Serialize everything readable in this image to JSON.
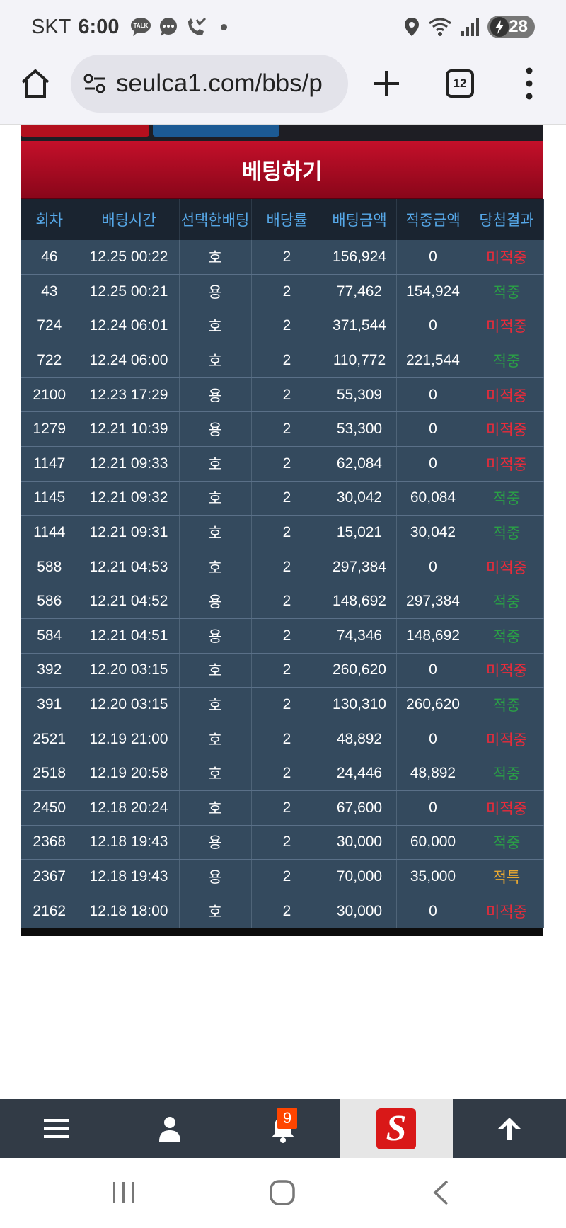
{
  "status_bar": {
    "carrier": "SKT",
    "time": "6:00",
    "battery": "28",
    "icons": [
      "talk-icon",
      "message-icon",
      "missed-call-icon",
      "location-icon",
      "wifi-icon",
      "signal-icon",
      "battery-icon"
    ]
  },
  "browser": {
    "url": "seulca1.com/bbs/p",
    "tab_count": "12"
  },
  "page": {
    "title": "베팅하기",
    "columns": [
      "회차",
      "배팅시간",
      "선택한배팅",
      "배당률",
      "배팅금액",
      "적중금액",
      "당첨결과"
    ],
    "rows": [
      {
        "round": "46",
        "time": "12.25 00:22",
        "pick": "호",
        "odds": "2",
        "bet": "156,924",
        "win": "0",
        "result": "미적중",
        "status": "miss"
      },
      {
        "round": "43",
        "time": "12.25 00:21",
        "pick": "용",
        "odds": "2",
        "bet": "77,462",
        "win": "154,924",
        "result": "적중",
        "status": "hit"
      },
      {
        "round": "724",
        "time": "12.24 06:01",
        "pick": "호",
        "odds": "2",
        "bet": "371,544",
        "win": "0",
        "result": "미적중",
        "status": "miss"
      },
      {
        "round": "722",
        "time": "12.24 06:00",
        "pick": "호",
        "odds": "2",
        "bet": "110,772",
        "win": "221,544",
        "result": "적중",
        "status": "hit"
      },
      {
        "round": "2100",
        "time": "12.23 17:29",
        "pick": "용",
        "odds": "2",
        "bet": "55,309",
        "win": "0",
        "result": "미적중",
        "status": "miss"
      },
      {
        "round": "1279",
        "time": "12.21 10:39",
        "pick": "용",
        "odds": "2",
        "bet": "53,300",
        "win": "0",
        "result": "미적중",
        "status": "miss"
      },
      {
        "round": "1147",
        "time": "12.21 09:33",
        "pick": "호",
        "odds": "2",
        "bet": "62,084",
        "win": "0",
        "result": "미적중",
        "status": "miss"
      },
      {
        "round": "1145",
        "time": "12.21 09:32",
        "pick": "호",
        "odds": "2",
        "bet": "30,042",
        "win": "60,084",
        "result": "적중",
        "status": "hit"
      },
      {
        "round": "1144",
        "time": "12.21 09:31",
        "pick": "호",
        "odds": "2",
        "bet": "15,021",
        "win": "30,042",
        "result": "적중",
        "status": "hit"
      },
      {
        "round": "588",
        "time": "12.21 04:53",
        "pick": "호",
        "odds": "2",
        "bet": "297,384",
        "win": "0",
        "result": "미적중",
        "status": "miss"
      },
      {
        "round": "586",
        "time": "12.21 04:52",
        "pick": "용",
        "odds": "2",
        "bet": "148,692",
        "win": "297,384",
        "result": "적중",
        "status": "hit"
      },
      {
        "round": "584",
        "time": "12.21 04:51",
        "pick": "용",
        "odds": "2",
        "bet": "74,346",
        "win": "148,692",
        "result": "적중",
        "status": "hit"
      },
      {
        "round": "392",
        "time": "12.20 03:15",
        "pick": "호",
        "odds": "2",
        "bet": "260,620",
        "win": "0",
        "result": "미적중",
        "status": "miss"
      },
      {
        "round": "391",
        "time": "12.20 03:15",
        "pick": "호",
        "odds": "2",
        "bet": "130,310",
        "win": "260,620",
        "result": "적중",
        "status": "hit"
      },
      {
        "round": "2521",
        "time": "12.19 21:00",
        "pick": "호",
        "odds": "2",
        "bet": "48,892",
        "win": "0",
        "result": "미적중",
        "status": "miss"
      },
      {
        "round": "2518",
        "time": "12.19 20:58",
        "pick": "호",
        "odds": "2",
        "bet": "24,446",
        "win": "48,892",
        "result": "적중",
        "status": "hit"
      },
      {
        "round": "2450",
        "time": "12.18 20:24",
        "pick": "호",
        "odds": "2",
        "bet": "67,600",
        "win": "0",
        "result": "미적중",
        "status": "miss"
      },
      {
        "round": "2368",
        "time": "12.18 19:43",
        "pick": "용",
        "odds": "2",
        "bet": "30,000",
        "win": "60,000",
        "result": "적중",
        "status": "hit"
      },
      {
        "round": "2367",
        "time": "12.18 19:43",
        "pick": "용",
        "odds": "2",
        "bet": "70,000",
        "win": "35,000",
        "result": "적특",
        "status": "special"
      },
      {
        "round": "2162",
        "time": "12.18 18:00",
        "pick": "호",
        "odds": "2",
        "bet": "30,000",
        "win": "0",
        "result": "미적중",
        "status": "miss"
      }
    ]
  },
  "bottom_nav": {
    "notification_count": "9",
    "logo_letter": "S",
    "icons": [
      "menu-icon",
      "user-icon",
      "bell-icon",
      "site-logo",
      "arrow-up-icon"
    ]
  },
  "colors": {
    "title_red": "#b3102a",
    "header_bg": "#1a2430",
    "header_text": "#56a8e8",
    "row_bg": "#344a5e",
    "miss": "#ea2b3a",
    "hit": "#2aa145",
    "special": "#e8a832"
  }
}
